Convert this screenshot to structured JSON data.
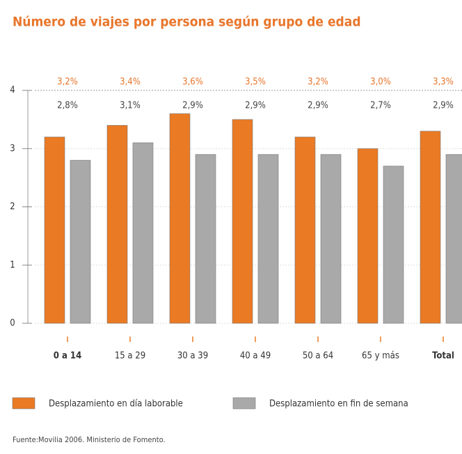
{
  "chart_data": {
    "type": "bar",
    "title": "Número de viajes por persona según grupo de edad",
    "categories": [
      "0 a 14",
      "15 a 29",
      "30 a 39",
      "40 a 49",
      "50 a 64",
      "65 y más",
      "Total"
    ],
    "series": [
      {
        "name": "Desplazamiento en día laborable",
        "color": "#ea7a24",
        "values": [
          3.2,
          3.4,
          3.6,
          3.5,
          3.2,
          3.0,
          3.3
        ],
        "value_labels": [
          "3,2%",
          "3,4%",
          "3,6%",
          "3,5%",
          "3,2%",
          "3,0%",
          "3,3%"
        ]
      },
      {
        "name": "Desplazamiento en fin de semana",
        "color": "#a9a9a9",
        "values": [
          2.8,
          3.1,
          2.9,
          2.9,
          2.9,
          2.7,
          2.9
        ],
        "value_labels": [
          "2,8%",
          "3,1%",
          "2,9%",
          "2,9%",
          "2,9%",
          "2,7%",
          "2,9%"
        ]
      }
    ],
    "ylim": [
      0,
      4
    ],
    "yticks": [
      0,
      1,
      2,
      3,
      4
    ],
    "grid": true,
    "source": "Fuente:Movilia 2006. Ministerio de Fomento."
  }
}
